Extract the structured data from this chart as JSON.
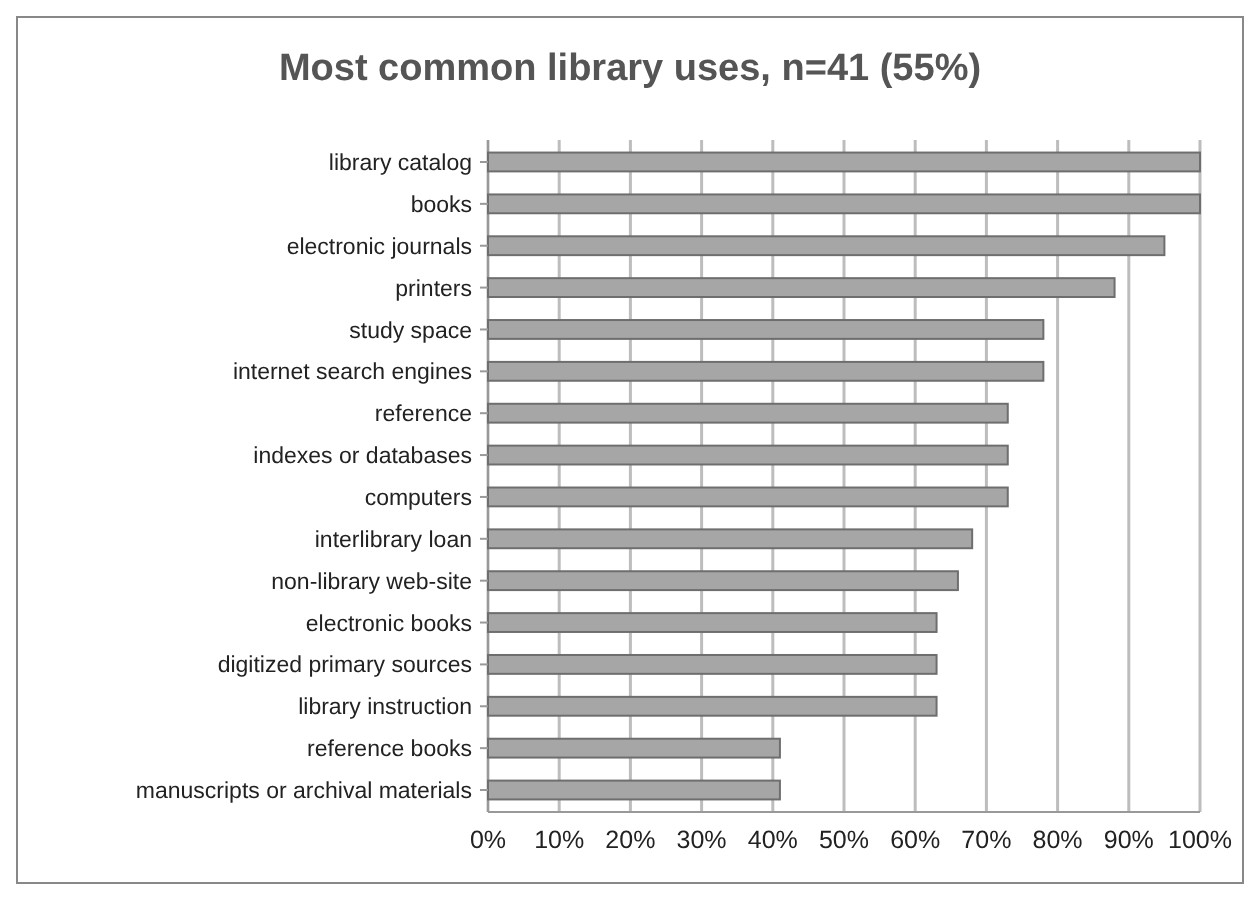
{
  "chart_data": {
    "type": "bar",
    "orientation": "horizontal",
    "title": "Most common library uses, n=41 (55%)",
    "categories": [
      "library catalog",
      "books",
      "electronic journals",
      "printers",
      "study space",
      "internet search engines",
      "reference ",
      "indexes or databases",
      "computers",
      "interlibrary loan",
      "non-library web-site",
      "electronic books",
      "digitized primary sources",
      "library instruction",
      "reference books",
      "manuscripts or archival materials"
    ],
    "values": [
      100,
      100,
      95,
      88,
      78,
      78,
      73,
      73,
      73,
      68,
      66,
      63,
      63,
      63,
      41,
      41
    ],
    "color": "#a6a6a6",
    "xlim": [
      0,
      100
    ],
    "xticks": [
      {
        "value": 0,
        "label": "0%"
      },
      {
        "value": 10,
        "label": "10%"
      },
      {
        "value": 20,
        "label": "20%"
      },
      {
        "value": 30,
        "label": "30%"
      },
      {
        "value": 40,
        "label": "40%"
      },
      {
        "value": 50,
        "label": "50%"
      },
      {
        "value": 60,
        "label": "60%"
      },
      {
        "value": 70,
        "label": "70%"
      },
      {
        "value": 80,
        "label": "80%"
      },
      {
        "value": 90,
        "label": "90%"
      },
      {
        "value": 100,
        "label": "100%"
      }
    ],
    "grid": "x"
  }
}
